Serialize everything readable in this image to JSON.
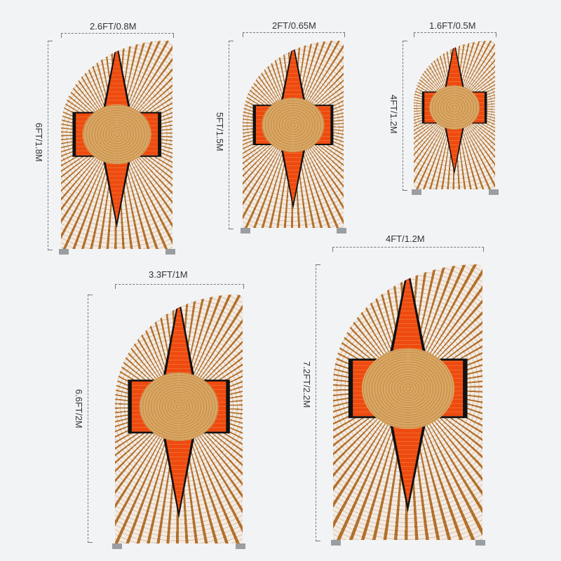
{
  "colors": {
    "background": "#f2f3f5",
    "orange": "#ee4a10",
    "tan": "#d9a764",
    "black": "#111111",
    "cream": "#f4ece4"
  },
  "products": [
    {
      "width_label": "2.6FT/0.8M",
      "height_label": "6FT/1.8M"
    },
    {
      "width_label": "2FT/0.65M",
      "height_label": "5FT/1.5M"
    },
    {
      "width_label": "1.6FT/0.5M",
      "height_label": "4FT/1.2M"
    },
    {
      "width_label": "3.3FT/1M",
      "height_label": "6.6FT/2M"
    },
    {
      "width_label": "4FT/1.2M",
      "height_label": "7.2FT/2.2M"
    }
  ]
}
